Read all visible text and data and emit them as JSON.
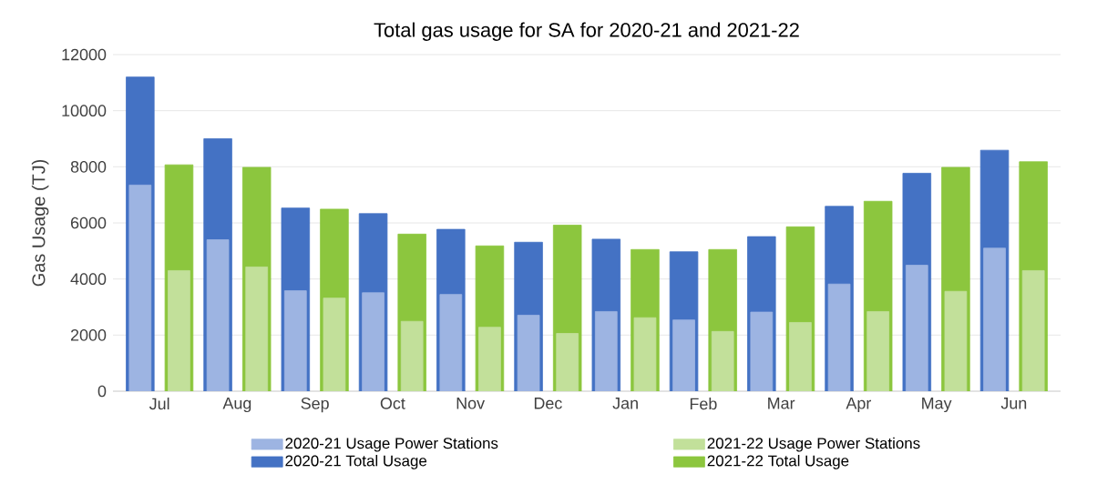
{
  "chart_data": {
    "type": "bar",
    "title": "Total gas usage for SA for 2020-21 and 2021-22",
    "ylabel": "Gas Usage (TJ)",
    "categories": [
      "Jul",
      "Aug",
      "Sep",
      "Oct",
      "Nov",
      "Dec",
      "Jan",
      "Feb",
      "Mar",
      "Apr",
      "May",
      "Jun"
    ],
    "series": [
      {
        "name": "2020-21 Usage Power Stations",
        "color": "#9db4e2",
        "values": [
          7350,
          5400,
          3580,
          3510,
          3450,
          2710,
          2840,
          2540,
          2820,
          3820,
          4490,
          5100
        ]
      },
      {
        "name": "2021-22 Usage Power Stations",
        "color": "#c2e09a",
        "values": [
          4300,
          4430,
          3320,
          2490,
          2280,
          2060,
          2620,
          2130,
          2450,
          2840,
          3560,
          4300
        ]
      },
      {
        "name": "2020-21 Total Usage",
        "color": "#4472c4",
        "values": [
          11200,
          9000,
          6530,
          6330,
          5770,
          5310,
          5420,
          4970,
          5510,
          6590,
          7770,
          8590
        ]
      },
      {
        "name": "2021-22 Total Usage",
        "color": "#8cc63e",
        "values": [
          8070,
          7980,
          6490,
          5600,
          5180,
          5920,
          5050,
          5050,
          5860,
          6770,
          7980,
          8180
        ]
      }
    ],
    "ylim": [
      0,
      12000
    ],
    "yticks": [
      0,
      2000,
      4000,
      6000,
      8000,
      10000,
      12000
    ],
    "grid": "y",
    "legend": "bottom"
  }
}
